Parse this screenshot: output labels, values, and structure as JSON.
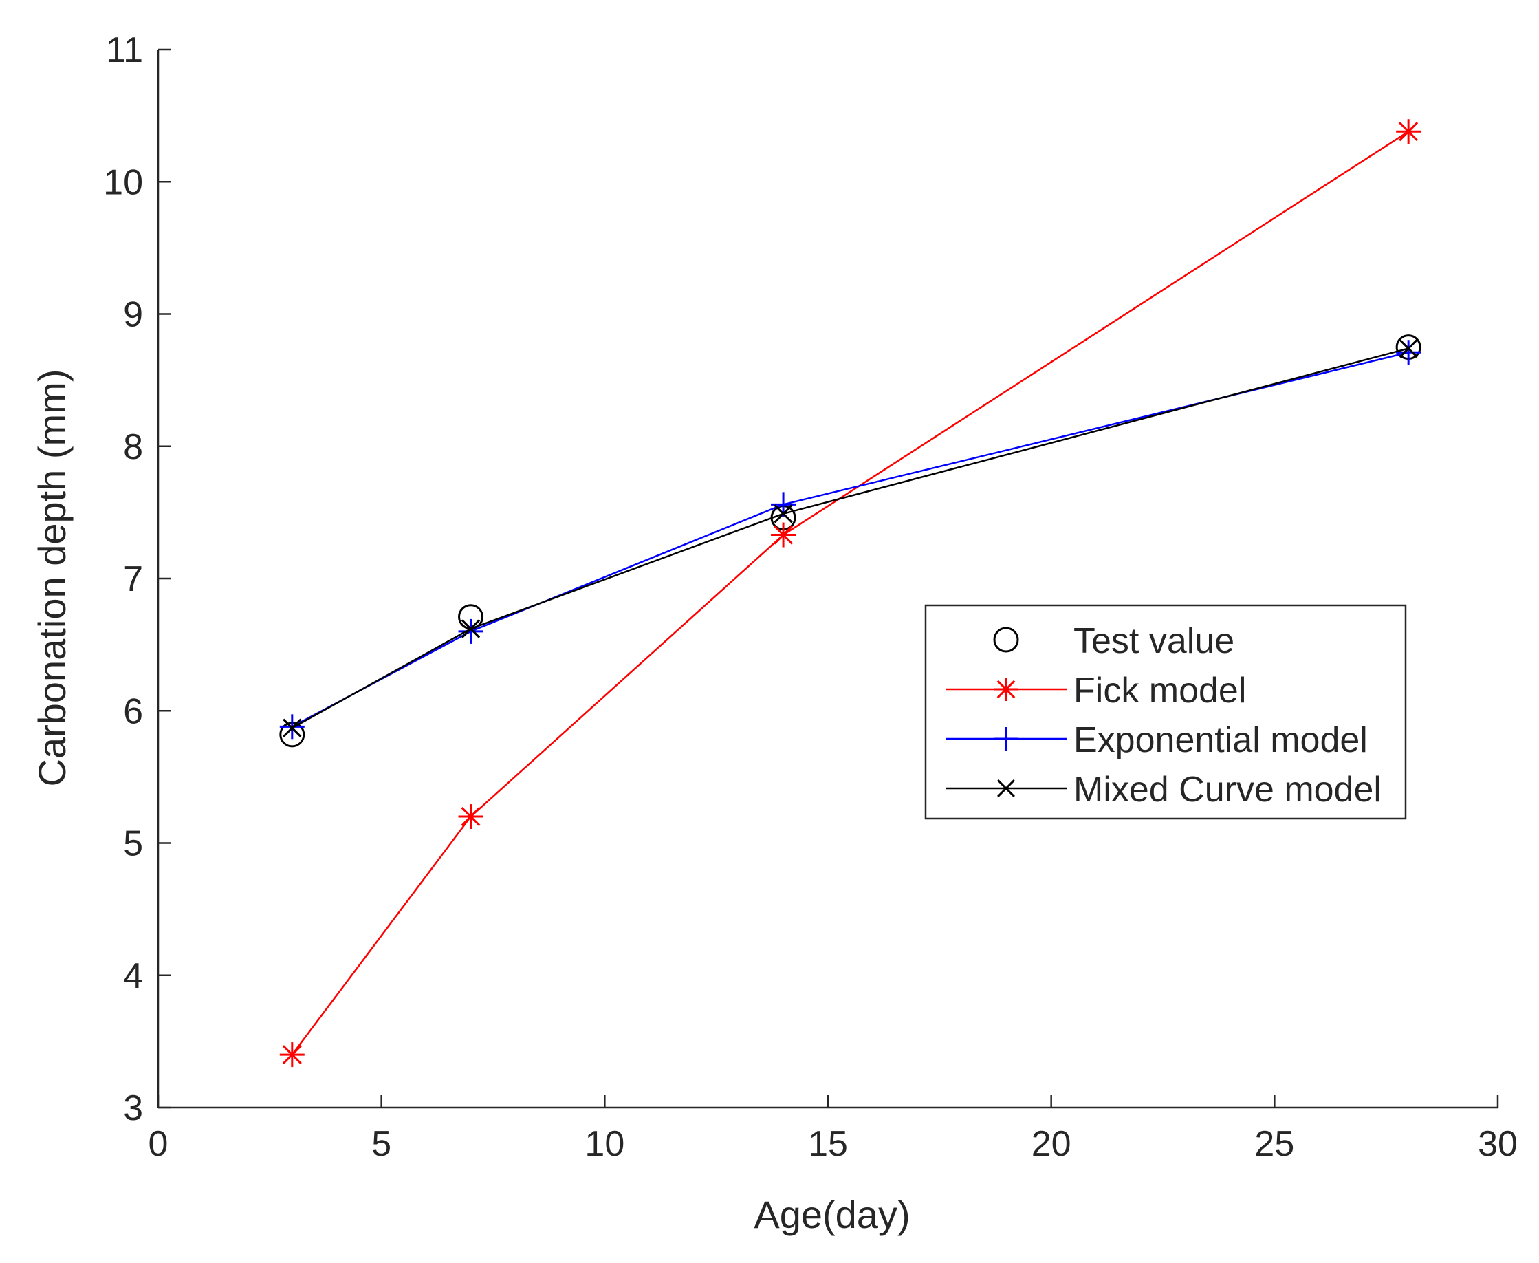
{
  "chart_data": {
    "type": "line",
    "title": "",
    "xlabel": "Age(day)",
    "ylabel": "Carbonation depth (mm)",
    "xlim": [
      0,
      30
    ],
    "ylim": [
      3,
      11
    ],
    "xticks": [
      0,
      5,
      10,
      15,
      20,
      25,
      30
    ],
    "yticks": [
      3,
      4,
      5,
      6,
      7,
      8,
      9,
      10,
      11
    ],
    "grid": false,
    "legend_position": "center-right",
    "x": [
      3,
      7,
      14,
      28
    ],
    "series": [
      {
        "name": "Test value",
        "values": [
          5.82,
          6.71,
          7.46,
          8.75
        ],
        "color": "#000000",
        "marker": "circle",
        "line": false
      },
      {
        "name": "Fick model",
        "values": [
          3.4,
          5.2,
          7.33,
          10.38
        ],
        "color": "#ff0000",
        "marker": "asterisk",
        "line": true
      },
      {
        "name": "Exponential model",
        "values": [
          5.88,
          6.6,
          7.56,
          8.71
        ],
        "color": "#0000ff",
        "marker": "plus",
        "line": true
      },
      {
        "name": "Mixed Curve model",
        "values": [
          5.87,
          6.62,
          7.49,
          8.74
        ],
        "color": "#000000",
        "marker": "x",
        "line": true
      }
    ]
  }
}
